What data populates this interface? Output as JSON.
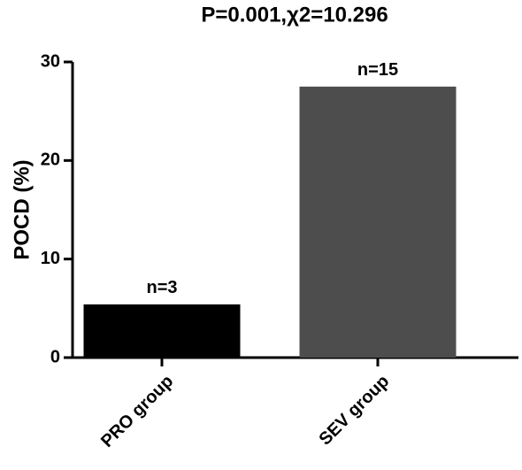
{
  "chart_data": {
    "type": "bar",
    "title": "P=0.001,χ2=10.296",
    "y_label": "POCD (%)",
    "categories": [
      "PRO group",
      "SEV group"
    ],
    "values": [
      5.4,
      27.5
    ],
    "annotations": [
      "n=3",
      "n=15"
    ],
    "colors": [
      "#000000",
      "#4d4d4d"
    ],
    "ylim": [
      0,
      30
    ],
    "yticks": [
      0,
      10,
      20,
      30
    ],
    "grid": false
  }
}
